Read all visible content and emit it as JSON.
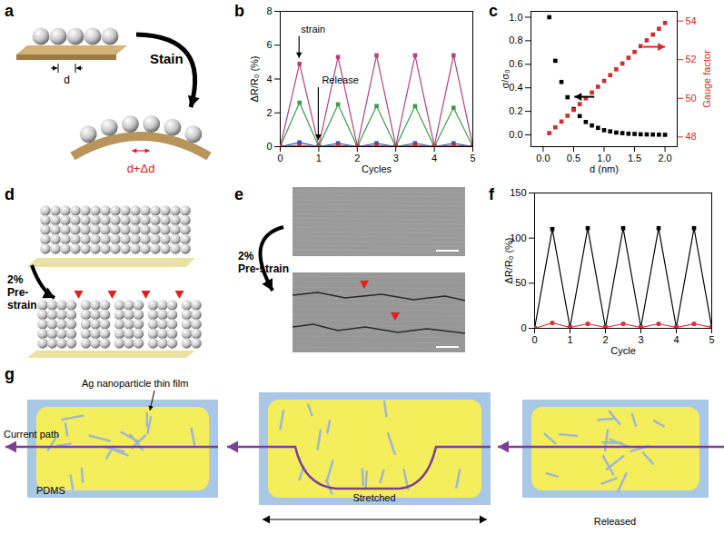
{
  "panels": {
    "a": {
      "letter": "a",
      "action": "Stain",
      "spacing": "d",
      "stretched_spacing": "d+Δd"
    },
    "d": {
      "letter": "d",
      "prestrain": [
        "2%",
        "Pre-",
        "strain"
      ]
    },
    "e": {
      "letter": "e",
      "prestrain": [
        "2%",
        "Pre-strain"
      ]
    },
    "g": {
      "letter": "g",
      "film": "Ag nanoparticle thin film",
      "current": "Current path",
      "substrate": "PDMS",
      "stretched": "Stretched",
      "released": "Released"
    }
  },
  "chart_data": [
    {
      "title": "b",
      "type": "line",
      "marker": "square",
      "x": [
        0,
        0.5,
        1,
        1.5,
        2,
        2.5,
        3,
        3.5,
        4,
        4.5,
        5
      ],
      "xlim": [
        0,
        5
      ],
      "xticks": [
        0,
        1,
        2,
        3,
        4,
        5
      ],
      "ylim": [
        0,
        8
      ],
      "yticks": [
        0,
        2,
        4,
        6,
        8
      ],
      "xlabel": "Cycles",
      "ylabel": "ΔR/R₀ (%)",
      "annotations": [
        "strain",
        "Release"
      ],
      "series": [
        {
          "color": "#b8407e",
          "values": [
            0,
            4.9,
            0.05,
            5.3,
            0.05,
            5.4,
            0.05,
            5.4,
            0.05,
            5.4,
            0.05
          ]
        },
        {
          "color": "#3b9b4a",
          "values": [
            0,
            2.6,
            0,
            2.5,
            0,
            2.4,
            0,
            2.4,
            0,
            2.3,
            0
          ]
        },
        {
          "color": "#2f4fb5",
          "values": [
            0,
            0.25,
            0,
            0.2,
            0,
            0.2,
            0,
            0.2,
            0,
            0.2,
            0
          ]
        },
        {
          "color": "#d03030",
          "values": [
            0,
            0.08,
            0,
            0.08,
            0,
            0.08,
            0,
            0.08,
            0,
            0.08,
            0
          ]
        }
      ]
    },
    {
      "title": "c",
      "type": "scatter",
      "marker": "square",
      "x": [
        0.1,
        0.2,
        0.3,
        0.4,
        0.5,
        0.6,
        0.7,
        0.8,
        0.9,
        1.0,
        1.1,
        1.2,
        1.3,
        1.4,
        1.5,
        1.6,
        1.7,
        1.8,
        1.9,
        2.0
      ],
      "xlim": [
        -0.2,
        2.2
      ],
      "xticks": [
        {
          "value": 0,
          "label": "0.0"
        },
        0.5,
        {
          "value": 1,
          "label": "1.0"
        },
        1.5,
        {
          "value": 2,
          "label": "2.0"
        }
      ],
      "ylim": [
        -0.1,
        1.05
      ],
      "yticks": [
        {
          "value": 0,
          "label": "0.0"
        },
        0.2,
        0.4,
        0.6,
        0.8,
        {
          "value": 1,
          "label": "1.0"
        }
      ],
      "y2lim": [
        47.5,
        54.5
      ],
      "y2ticks": [
        48,
        50,
        52,
        54
      ],
      "xlabel": "d (nm)",
      "ylabel": "σ/σ₀",
      "y2label": "Gauge factor",
      "series": [
        {
          "color": "#000000",
          "values": [
            1.0,
            0.63,
            0.45,
            0.32,
            0.22,
            0.16,
            0.11,
            0.08,
            0.06,
            0.04,
            0.03,
            0.02,
            0.015,
            0.01,
            0.008,
            0.005,
            0.004,
            0.003,
            0.002,
            0.001
          ]
        },
        {
          "color": "#d42a2a",
          "axis": "y2",
          "values": [
            48.2,
            48.5,
            48.8,
            49.1,
            49.4,
            49.7,
            50.0,
            50.3,
            50.6,
            50.9,
            51.2,
            51.5,
            51.8,
            52.1,
            52.4,
            52.7,
            53.0,
            53.3,
            53.6,
            53.9
          ]
        }
      ]
    },
    {
      "title": "f",
      "type": "line",
      "x": [
        0,
        0.5,
        1,
        1.5,
        2,
        2.5,
        3,
        3.5,
        4,
        4.5,
        5
      ],
      "xlim": [
        0,
        5
      ],
      "xticks": [
        0,
        1,
        2,
        3,
        4,
        5
      ],
      "ylim": [
        0,
        150
      ],
      "yticks": [
        0,
        50,
        100,
        150
      ],
      "xlabel": "Cycle",
      "ylabel": "ΔR/R₀ (%)",
      "series": [
        {
          "color": "#000000",
          "marker": "square",
          "values": [
            0,
            110,
            1,
            111,
            1,
            111,
            1,
            111,
            1,
            111,
            1
          ]
        },
        {
          "color": "#e03030",
          "marker": "circle",
          "values": [
            0,
            6,
            1,
            5,
            1,
            5,
            1,
            5,
            1,
            5,
            1
          ]
        }
      ]
    }
  ]
}
